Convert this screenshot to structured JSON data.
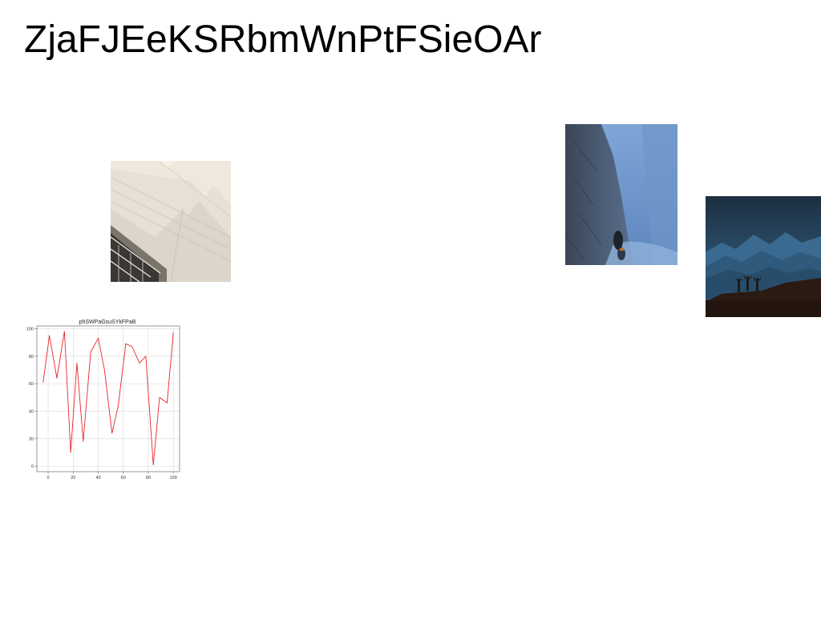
{
  "page": {
    "title": "ZjaFJEeKSRbmWnPtFSieOAr"
  },
  "images": [
    {
      "name": "architecture-photo",
      "subject": "white angular building facade"
    },
    {
      "name": "canyon-photo",
      "subject": "blue rock canyon with hiker"
    },
    {
      "name": "mountains-photo",
      "subject": "three people on a ridge at dusk with blue mountains"
    }
  ],
  "chart_data": {
    "type": "line",
    "title": "phSWPaGsuSYkFPaB",
    "xlabel": "",
    "ylabel": "",
    "xlim": [
      -9,
      105
    ],
    "ylim": [
      -4,
      102
    ],
    "grid": true,
    "x_ticks": [
      0,
      20,
      40,
      60,
      80,
      100
    ],
    "y_ticks": [
      0,
      20,
      40,
      60,
      80,
      100
    ],
    "series": [
      {
        "color": "#e8262b",
        "x": [
          -4,
          1,
          7,
          13,
          18,
          23,
          28,
          34,
          40,
          45,
          51,
          56,
          62,
          67,
          73,
          78,
          84,
          89,
          95,
          100
        ],
        "y": [
          61,
          95,
          64,
          98,
          10,
          75,
          18,
          83,
          93,
          70,
          24,
          44,
          89,
          87,
          75,
          80,
          1,
          50,
          46,
          97
        ]
      }
    ]
  },
  "colors": {
    "background": "#ffffff",
    "title_text": "#000000",
    "line_series": "#e8262b",
    "grid": "#d9d9d9"
  }
}
